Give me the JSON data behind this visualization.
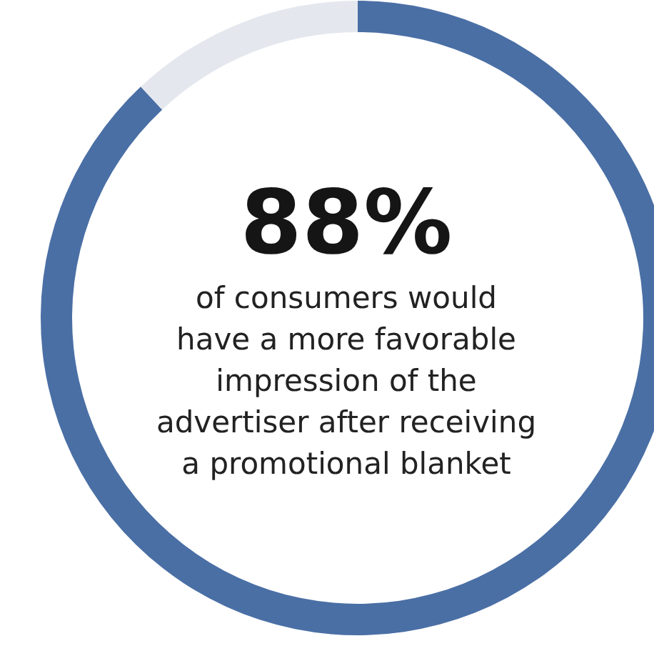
{
  "chart_data": {
    "type": "donut",
    "title": "88%",
    "categories": [
      null,
      null
    ],
    "values": [
      88,
      12
    ],
    "colors": [
      "#4a6fa5",
      "#e4e8ee"
    ],
    "annotations": [
      "of consumers would",
      "have a more favorable",
      "impression of the",
      "advertiser after receiving",
      "a promotional blanket"
    ]
  }
}
